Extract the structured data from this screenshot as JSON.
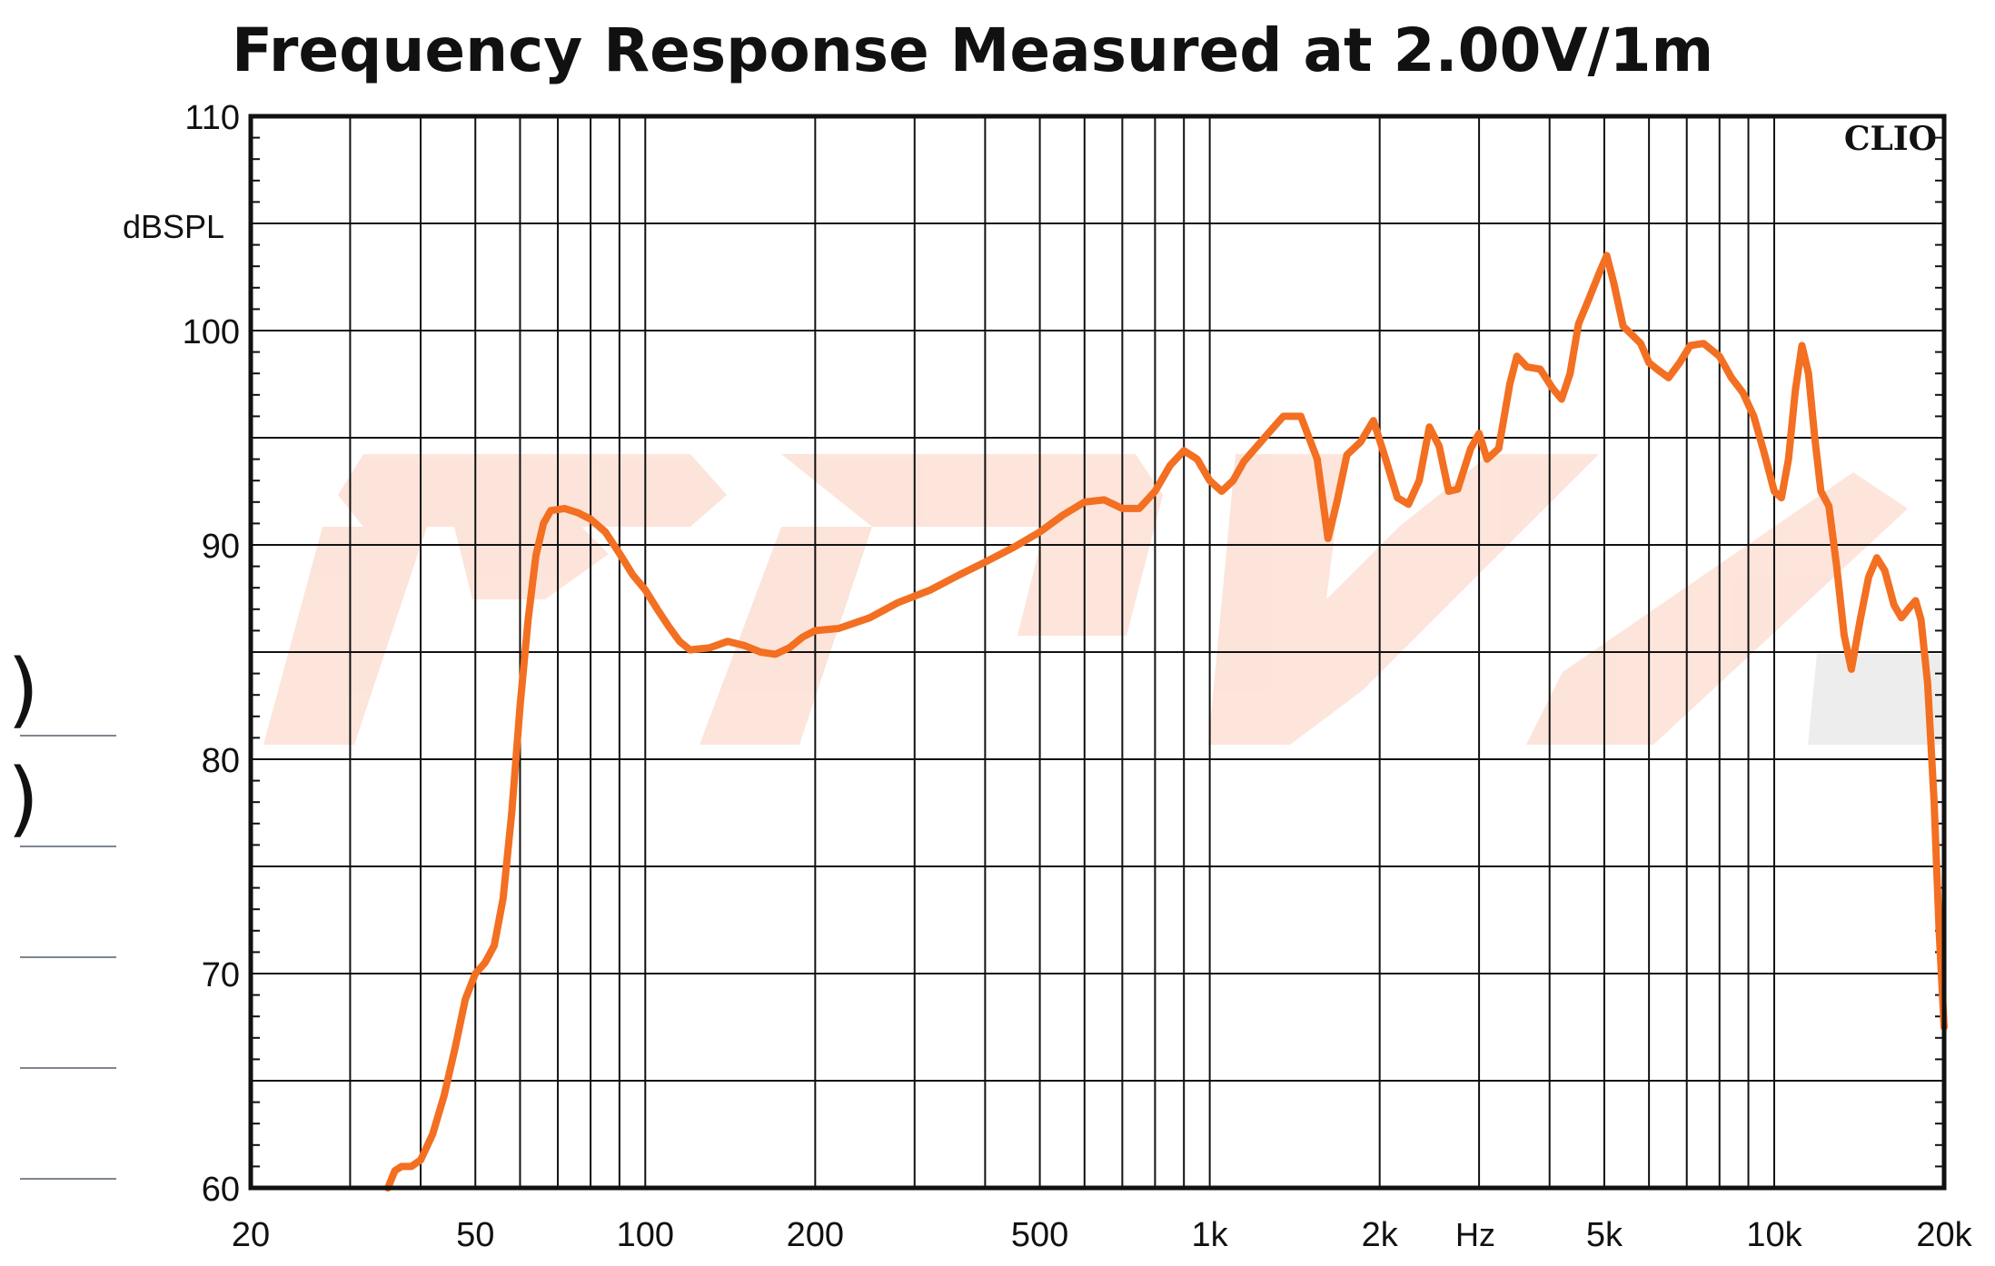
{
  "chart_data": {
    "type": "line",
    "title": "Frequency Response Measured at 2.00V/1m",
    "ylabel": "dBSPL",
    "xunit": "Hz",
    "brand": "CLIO",
    "xscale": "log",
    "xlim": [
      20,
      20000
    ],
    "ylim": [
      60,
      110
    ],
    "grid": true,
    "yticks": [
      60,
      70,
      80,
      90,
      100,
      110
    ],
    "xticks": [
      {
        "value": 20,
        "label": "20"
      },
      {
        "value": 50,
        "label": "50"
      },
      {
        "value": 100,
        "label": "100"
      },
      {
        "value": 200,
        "label": "200"
      },
      {
        "value": 500,
        "label": "500"
      },
      {
        "value": 1000,
        "label": "1k"
      },
      {
        "value": 2000,
        "label": "2k"
      },
      {
        "value": 5000,
        "label": "5k"
      },
      {
        "value": 10000,
        "label": "10k"
      },
      {
        "value": 20000,
        "label": "20k"
      }
    ],
    "series": [
      {
        "color": "#f36f21",
        "points": [
          [
            35.0,
            60.0
          ],
          [
            36.0,
            60.8
          ],
          [
            37.0,
            61.0
          ],
          [
            38.5,
            61.0
          ],
          [
            40.0,
            61.3
          ],
          [
            42.0,
            62.5
          ],
          [
            44.0,
            64.3
          ],
          [
            46.0,
            66.5
          ],
          [
            48.0,
            68.8
          ],
          [
            50.0,
            70.0
          ],
          [
            52.0,
            70.5
          ],
          [
            54.0,
            71.3
          ],
          [
            56.0,
            73.5
          ],
          [
            58.0,
            77.5
          ],
          [
            60.0,
            82.5
          ],
          [
            62.0,
            86.5
          ],
          [
            64.0,
            89.5
          ],
          [
            66.0,
            91.0
          ],
          [
            68.0,
            91.6
          ],
          [
            72.0,
            91.7
          ],
          [
            76.0,
            91.5
          ],
          [
            80.0,
            91.2
          ],
          [
            85.0,
            90.6
          ],
          [
            90.0,
            89.6
          ],
          [
            95.0,
            88.6
          ],
          [
            100.0,
            87.9
          ],
          [
            105.0,
            87.0
          ],
          [
            110.0,
            86.2
          ],
          [
            115.0,
            85.5
          ],
          [
            120.0,
            85.1
          ],
          [
            130.0,
            85.2
          ],
          [
            140.0,
            85.5
          ],
          [
            150.0,
            85.3
          ],
          [
            160.0,
            85.0
          ],
          [
            170.0,
            84.9
          ],
          [
            180.0,
            85.2
          ],
          [
            190.0,
            85.7
          ],
          [
            200.0,
            86.0
          ],
          [
            220.0,
            86.1
          ],
          [
            250.0,
            86.6
          ],
          [
            280.0,
            87.3
          ],
          [
            320.0,
            87.9
          ],
          [
            360.0,
            88.6
          ],
          [
            400.0,
            89.2
          ],
          [
            450.0,
            89.9
          ],
          [
            500.0,
            90.6
          ],
          [
            550.0,
            91.4
          ],
          [
            600.0,
            92.0
          ],
          [
            650.0,
            92.1
          ],
          [
            700.0,
            91.7
          ],
          [
            750.0,
            91.7
          ],
          [
            800.0,
            92.5
          ],
          [
            850.0,
            93.7
          ],
          [
            900.0,
            94.4
          ],
          [
            950.0,
            94.0
          ],
          [
            1000.0,
            93.0
          ],
          [
            1050.0,
            92.5
          ],
          [
            1100.0,
            93.0
          ],
          [
            1150.0,
            93.9
          ],
          [
            1250.0,
            95.0
          ],
          [
            1350.0,
            96.0
          ],
          [
            1450.0,
            96.0
          ],
          [
            1550.0,
            94.0
          ],
          [
            1620.0,
            90.3
          ],
          [
            1680.0,
            92.0
          ],
          [
            1750.0,
            94.2
          ],
          [
            1850.0,
            94.8
          ],
          [
            1950.0,
            95.8
          ],
          [
            2050.0,
            94.0
          ],
          [
            2150.0,
            92.2
          ],
          [
            2250.0,
            91.9
          ],
          [
            2350.0,
            93.0
          ],
          [
            2450.0,
            95.5
          ],
          [
            2550.0,
            94.6
          ],
          [
            2650.0,
            92.5
          ],
          [
            2750.0,
            92.6
          ],
          [
            2900.0,
            94.5
          ],
          [
            3000.0,
            95.2
          ],
          [
            3100.0,
            94.0
          ],
          [
            3250.0,
            94.5
          ],
          [
            3400.0,
            97.5
          ],
          [
            3500.0,
            98.8
          ],
          [
            3650.0,
            98.3
          ],
          [
            3850.0,
            98.2
          ],
          [
            4050.0,
            97.3
          ],
          [
            4200.0,
            96.8
          ],
          [
            4350.0,
            98.0
          ],
          [
            4500.0,
            100.3
          ],
          [
            4700.0,
            101.5
          ],
          [
            4900.0,
            102.7
          ],
          [
            5050.0,
            103.5
          ],
          [
            5200.0,
            102.2
          ],
          [
            5400.0,
            100.2
          ],
          [
            5600.0,
            99.8
          ],
          [
            5800.0,
            99.4
          ],
          [
            6000.0,
            98.5
          ],
          [
            6200.0,
            98.2
          ],
          [
            6500.0,
            97.8
          ],
          [
            6800.0,
            98.5
          ],
          [
            7100.0,
            99.3
          ],
          [
            7500.0,
            99.4
          ],
          [
            8000.0,
            98.8
          ],
          [
            8400.0,
            97.8
          ],
          [
            8800.0,
            97.1
          ],
          [
            9200.0,
            96.0
          ],
          [
            9600.0,
            94.3
          ],
          [
            10000.0,
            92.5
          ],
          [
            10300.0,
            92.2
          ],
          [
            10600.0,
            94.0
          ],
          [
            10900.0,
            97.2
          ],
          [
            11200.0,
            99.3
          ],
          [
            11500.0,
            98.0
          ],
          [
            11800.0,
            95.0
          ],
          [
            12100.0,
            92.5
          ],
          [
            12500.0,
            91.8
          ],
          [
            12900.0,
            89.0
          ],
          [
            13300.0,
            85.8
          ],
          [
            13700.0,
            84.2
          ],
          [
            14200.0,
            86.5
          ],
          [
            14700.0,
            88.5
          ],
          [
            15200.0,
            89.4
          ],
          [
            15700.0,
            88.8
          ],
          [
            16300.0,
            87.2
          ],
          [
            16800.0,
            86.6
          ],
          [
            17400.0,
            87.1
          ],
          [
            17800.0,
            87.4
          ],
          [
            18200.0,
            86.5
          ],
          [
            18700.0,
            83.5
          ],
          [
            19200.0,
            78.0
          ],
          [
            19600.0,
            72.0
          ],
          [
            20000.0,
            67.5
          ]
        ]
      }
    ]
  },
  "side_marks": [
    ")",
    ")"
  ]
}
